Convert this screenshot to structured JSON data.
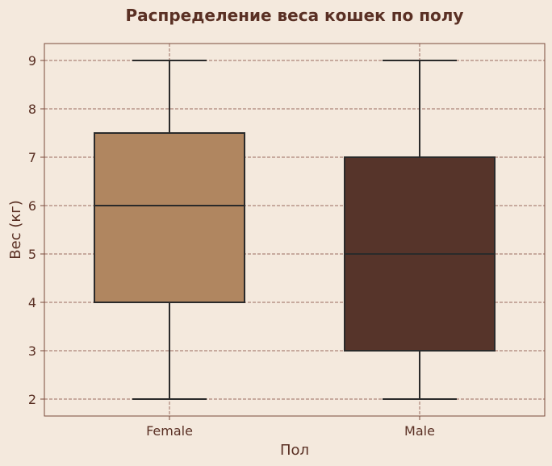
{
  "chart_data": {
    "type": "box",
    "title": "Распределение веса кошек по полу",
    "xlabel": "Пол",
    "ylabel": "Вес (кг)",
    "ylim": [
      1.65,
      9.35
    ],
    "yticks": [
      "2",
      "3",
      "4",
      "5",
      "6",
      "7",
      "8",
      "9"
    ],
    "grid": true,
    "categories": [
      "Female",
      "Male"
    ],
    "series": [
      {
        "category": "Female",
        "min": 2,
        "q1": 4,
        "median": 6,
        "q3": 7.5,
        "max": 9,
        "color": "#b08660"
      },
      {
        "category": "Male",
        "min": 2,
        "q1": 3,
        "median": 5,
        "q3": 7,
        "max": 9,
        "color": "#56342a"
      }
    ]
  },
  "colors": {
    "background": "#f4e9dd",
    "text": "#5a3024",
    "grid": "#9a6a5e",
    "frame": "#7a4a3c",
    "stroke": "#2a2a2a"
  }
}
